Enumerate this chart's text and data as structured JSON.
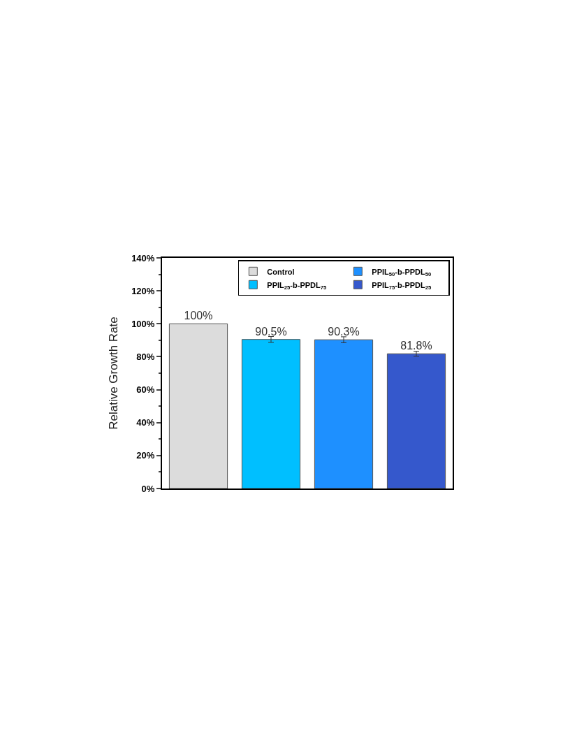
{
  "chart_data": {
    "type": "bar",
    "ylabel": "Relative Growth Rate",
    "categories": [
      null,
      null,
      null,
      null
    ],
    "series": [
      {
        "name": "Control",
        "color": "#dcdcdc",
        "values": [
          100,
          null,
          null,
          null
        ],
        "errors": [
          null,
          null,
          null,
          null
        ],
        "value_labels": [
          "100%",
          null,
          null,
          null
        ]
      },
      {
        "name": "PPIL$_{25}$-b-PPDL$_{75}$",
        "color": "#00bfff",
        "values": [
          null,
          90.5,
          null,
          null
        ],
        "errors": [
          null,
          1.8,
          null,
          null
        ],
        "value_labels": [
          null,
          "90.5%",
          null,
          null
        ]
      },
      {
        "name": "PPIL$_{50}$-b-PPDL$_{50}$",
        "color": "#1e90ff",
        "values": [
          null,
          null,
          90.3,
          null
        ],
        "errors": [
          null,
          null,
          1.8,
          null
        ],
        "value_labels": [
          null,
          null,
          "90.3%",
          null
        ]
      },
      {
        "name": "PPIL$_{75}$-b-PPDL$_{25}$",
        "color": "#3558cc",
        "values": [
          null,
          null,
          null,
          81.8
        ],
        "errors": [
          null,
          null,
          null,
          1.5
        ],
        "value_labels": [
          null,
          null,
          null,
          "81.8%"
        ]
      }
    ],
    "ylim": [
      0,
      140
    ],
    "yticks": [
      {
        "value": 0,
        "label": "0%"
      },
      {
        "value": 20,
        "label": "20%"
      },
      {
        "value": 40,
        "label": "40%"
      },
      {
        "value": 60,
        "label": "60%"
      },
      {
        "value": 80,
        "label": "80%"
      },
      {
        "value": 100,
        "label": "100%"
      },
      {
        "value": 120,
        "label": "120%"
      },
      {
        "value": 140,
        "label": "140%"
      }
    ],
    "legend": "top right"
  }
}
